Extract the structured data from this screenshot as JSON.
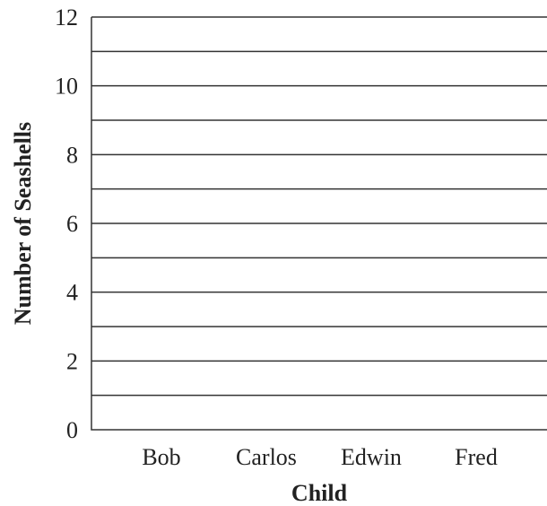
{
  "chart_data": {
    "type": "bar",
    "title": "",
    "xlabel": "Child",
    "ylabel": "Number of Seashells",
    "categories": [
      "Bob",
      "Carlos",
      "Edwin",
      "Fred"
    ],
    "values": [
      null,
      null,
      null,
      null
    ],
    "ylim": [
      0,
      12
    ],
    "yticks": [
      "0",
      "2",
      "4",
      "6",
      "8",
      "10",
      "12"
    ],
    "minor_step": 1,
    "grid": true,
    "legend": "none",
    "colors": {
      "line": "#333333",
      "text": "#222222",
      "background": "#ffffff"
    }
  }
}
